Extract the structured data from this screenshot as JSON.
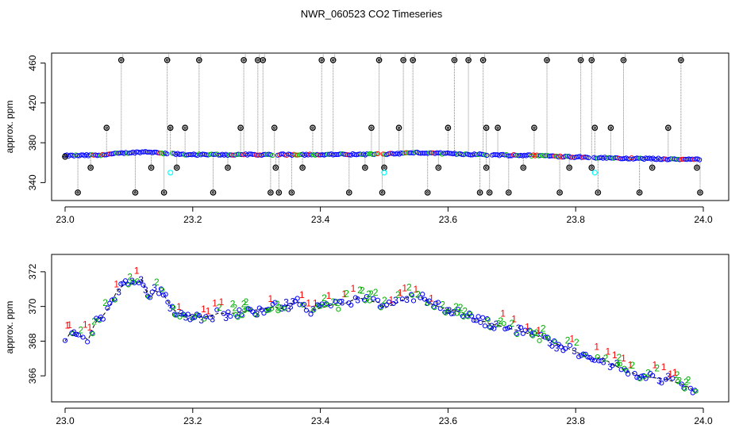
{
  "title": "NWR_060523  CO2 Timeseries",
  "colors": {
    "raw": "#0000ff",
    "flagged_low": "#00ffff",
    "outlier": "#000000",
    "flag1": "#ff0000",
    "flag2": "#00b000",
    "flag3": "#0000cc",
    "drop_line": "#888888"
  },
  "chart_data": [
    {
      "type": "scatter",
      "name": "top-panel",
      "ylabel": "approx. ppm",
      "xlabel": "",
      "xlim": [
        23.0,
        24.0
      ],
      "ylim": [
        322,
        470
      ],
      "x_ticks": [
        23.0,
        23.2,
        23.4,
        23.6,
        23.8,
        24.0
      ],
      "x_tick_labels": [
        "23.0",
        "23.2",
        "23.4",
        "23.6",
        "23.8",
        "24.0"
      ],
      "y_ticks": [
        340,
        380,
        420,
        460
      ],
      "y_tick_labels": [
        "340",
        "380",
        "420",
        "460"
      ],
      "baseline": [
        [
          23.0,
          367
        ],
        [
          23.05,
          367.5
        ],
        [
          23.1,
          370
        ],
        [
          23.13,
          371
        ],
        [
          23.16,
          369
        ],
        [
          23.2,
          368
        ],
        [
          23.33,
          368
        ],
        [
          23.5,
          368.5
        ],
        [
          23.55,
          370
        ],
        [
          23.66,
          368
        ],
        [
          23.75,
          367
        ],
        [
          23.83,
          365
        ],
        [
          24.0,
          363
        ]
      ],
      "gaps": [
        23.165,
        23.33,
        23.495,
        23.665,
        23.825
      ],
      "outliers_x": [
        23.0,
        23.02,
        23.04,
        23.065,
        23.088,
        23.11,
        23.135,
        23.155,
        23.16,
        23.165,
        23.175,
        23.188,
        23.21,
        23.232,
        23.255,
        23.275,
        23.28,
        23.302,
        23.31,
        23.322,
        23.328,
        23.33,
        23.335,
        23.355,
        23.372,
        23.388,
        23.402,
        23.42,
        23.445,
        23.47,
        23.48,
        23.492,
        23.497,
        23.5,
        23.523,
        23.53,
        23.545,
        23.568,
        23.585,
        23.6,
        23.61,
        23.632,
        23.65,
        23.655,
        23.66,
        23.66,
        23.665,
        23.678,
        23.695,
        23.718,
        23.735,
        23.755,
        23.775,
        23.79,
        23.808,
        23.825,
        23.825,
        23.83,
        23.835,
        23.855,
        23.875,
        23.9,
        23.92,
        23.945,
        23.965,
        23.99,
        23.995
      ],
      "outliers_y": [
        366,
        330,
        355,
        395,
        463,
        330,
        355,
        330,
        463,
        395,
        355,
        395,
        463,
        330,
        355,
        395,
        463,
        463,
        463,
        330,
        395,
        355,
        330,
        330,
        355,
        395,
        463,
        463,
        330,
        355,
        395,
        463,
        330,
        355,
        395,
        463,
        463,
        330,
        355,
        395,
        463,
        463,
        330,
        463,
        395,
        355,
        330,
        395,
        330,
        355,
        395,
        463,
        330,
        355,
        463,
        463,
        355,
        395,
        330,
        395,
        463,
        330,
        355,
        395,
        463,
        355,
        330
      ],
      "cyan_x": [
        23.165,
        23.5,
        23.83
      ],
      "cyan_y": [
        350,
        350,
        350
      ]
    },
    {
      "type": "scatter",
      "name": "bottom-panel",
      "ylabel": "approx. ppm",
      "xlabel": "",
      "xlim": [
        23.0,
        24.0
      ],
      "ylim": [
        364.5,
        373.0
      ],
      "x_ticks": [
        23.0,
        23.2,
        23.4,
        23.6,
        23.8,
        24.0
      ],
      "x_tick_labels": [
        "23.0",
        "23.2",
        "23.4",
        "23.6",
        "23.8",
        "24.0"
      ],
      "y_ticks": [
        366,
        368,
        370,
        372
      ],
      "y_tick_labels": [
        "366",
        "368",
        "370",
        "372"
      ],
      "series_x": [
        23.0,
        23.01,
        23.02,
        23.025,
        23.03,
        23.035,
        23.04,
        23.045,
        23.05,
        23.06,
        23.07,
        23.08,
        23.09,
        23.1,
        23.11,
        23.12,
        23.125,
        23.13,
        23.135,
        23.14,
        23.15,
        23.16,
        23.165,
        23.17,
        23.18,
        23.19,
        23.2,
        23.22,
        23.24,
        23.26,
        23.28,
        23.3,
        23.32,
        23.33,
        23.335,
        23.35,
        23.37,
        23.38,
        23.4,
        23.42,
        23.44,
        23.46,
        23.48,
        23.495,
        23.5,
        23.52,
        23.54,
        23.56,
        23.57,
        23.6,
        23.62,
        23.64,
        23.66,
        23.665,
        23.68,
        23.7,
        23.72,
        23.74,
        23.76,
        23.78,
        23.8,
        23.82,
        23.825,
        23.84,
        23.86,
        23.88,
        23.9,
        23.92,
        23.94,
        23.96,
        23.98,
        23.99
      ],
      "series_y": [
        368.0,
        368.6,
        368.5,
        368.2,
        368.3,
        368.0,
        368.4,
        368.9,
        369.2,
        369.5,
        370.0,
        370.8,
        371.2,
        371.4,
        371.3,
        371.5,
        371.1,
        370.6,
        370.5,
        370.9,
        370.8,
        370.4,
        370.0,
        369.8,
        369.6,
        369.4,
        369.5,
        369.4,
        369.6,
        369.6,
        369.7,
        369.8,
        369.9,
        370.0,
        369.8,
        370.1,
        370.3,
        369.7,
        369.9,
        370.1,
        370.2,
        370.5,
        370.3,
        370.2,
        369.9,
        370.2,
        370.6,
        370.5,
        370.2,
        369.8,
        369.7,
        369.3,
        369.1,
        369.0,
        368.9,
        368.7,
        368.5,
        368.3,
        368.0,
        367.7,
        367.4,
        367.0,
        366.9,
        367.1,
        366.6,
        366.3,
        366.0,
        365.9,
        365.8,
        365.6,
        365.3,
        364.9
      ],
      "flag_labels": [
        "1",
        "2",
        "3"
      ]
    }
  ]
}
